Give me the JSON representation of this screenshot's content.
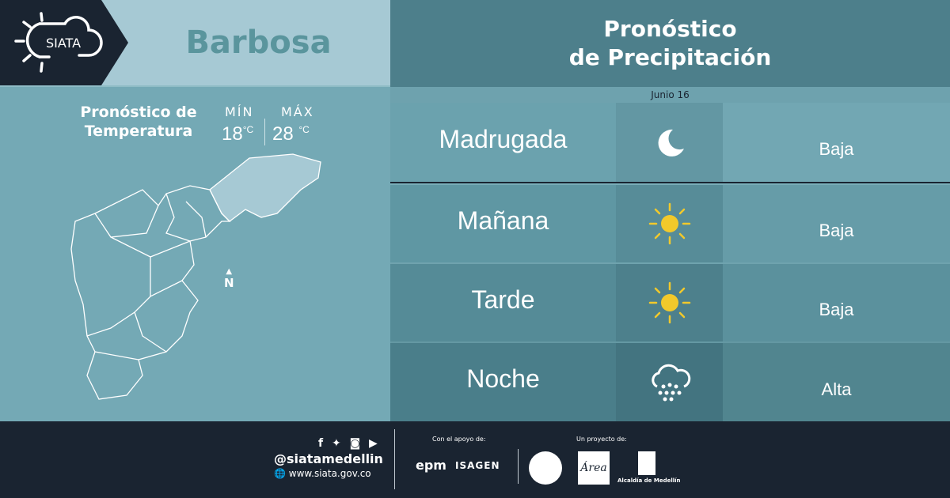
{
  "brand": {
    "logo_text": "SIATA"
  },
  "city": "Barbosa",
  "temperature": {
    "title_line1": "Pronóstico de",
    "title_line2": "Temperatura",
    "min_label": "MÍN",
    "max_label": "MÁX",
    "min": "18",
    "max": "28",
    "unit": "°C"
  },
  "map": {
    "north_label": "N"
  },
  "precip": {
    "title_line1": "Pronóstico",
    "title_line2": "de Precipitación",
    "date": "Junio 16",
    "rows": [
      {
        "period": "Madrugada",
        "icon": "moon-icon",
        "level": "Baja"
      },
      {
        "period": "Mañana",
        "icon": "sun-icon",
        "level": "Baja"
      },
      {
        "period": "Tarde",
        "icon": "sun-icon",
        "level": "Baja"
      },
      {
        "period": "Noche",
        "icon": "rain-cloud-icon",
        "level": "Alta"
      }
    ]
  },
  "footer": {
    "handle": "@siatamedellin",
    "website": "www.siata.gov.co",
    "support_label": "Con el apoyo de:",
    "project_label": "Un proyecto de:",
    "sponsor1": "epm",
    "sponsor2": "ISAGEN",
    "partner_area": "Área",
    "partner_alcaldia": "Alcaldía de Medellín"
  },
  "colors": {
    "dark": "#1a2431",
    "sun": "#f2c92b",
    "city": "#5a959d"
  }
}
